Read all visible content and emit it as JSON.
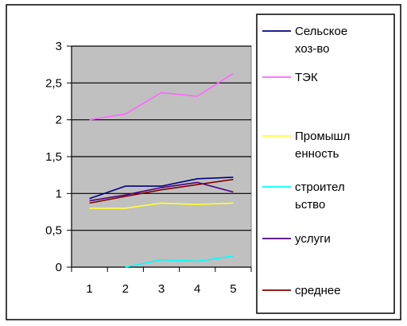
{
  "chart_data": {
    "type": "line",
    "title": "",
    "xlabel": "",
    "ylabel": "",
    "categories": [
      "1",
      "2",
      "3",
      "4",
      "5"
    ],
    "ylim": [
      0,
      3
    ],
    "yticks": [
      "0",
      "0,5",
      "1",
      "1,5",
      "2",
      "2,5",
      "3"
    ],
    "plot_background": "#c0c0c0",
    "grid": "horizontal major lines",
    "legend_position": "right",
    "series": [
      {
        "name": "Сельское хоз-во",
        "legend_lines": [
          "Сельское",
          "хоз-во"
        ],
        "color": "#000080",
        "values": [
          0.93,
          1.1,
          1.1,
          1.2,
          1.22
        ]
      },
      {
        "name": "ТЭК",
        "legend_lines": [
          "ТЭК"
        ],
        "color": "#ff66ff",
        "values": [
          2.0,
          2.08,
          2.37,
          2.32,
          2.63
        ]
      },
      {
        "name": "Промышленность",
        "legend_lines": [
          "Промышл",
          "енность"
        ],
        "color": "#ffff33",
        "values": [
          0.8,
          0.8,
          0.87,
          0.85,
          0.87
        ]
      },
      {
        "name": "строительство",
        "legend_lines": [
          "строител",
          "ьство"
        ],
        "color": "#00ffff",
        "values": [
          null,
          0.0,
          0.1,
          0.08,
          0.15
        ]
      },
      {
        "name": "услуги",
        "legend_lines": [
          "услуги"
        ],
        "color": "#4b0082",
        "values": [
          0.9,
          0.98,
          1.08,
          1.15,
          1.02
        ]
      },
      {
        "name": "среднее",
        "legend_lines": [
          "среднее"
        ],
        "color": "#800000",
        "values": [
          0.87,
          0.96,
          1.05,
          1.12,
          1.19
        ]
      }
    ]
  }
}
